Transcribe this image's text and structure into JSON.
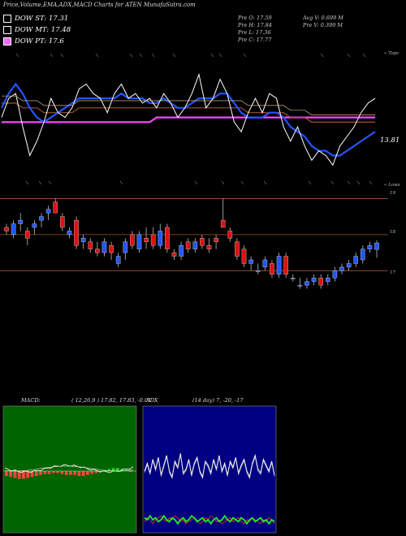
{
  "header": {
    "title": "Price,Volume,EMA,ADX,MACD Charts for ATEN  MunafaSutra.com",
    "legend": [
      {
        "label": "DOW ST: 17.31",
        "color": "#ffffff"
      },
      {
        "label": "DOW MT: 17.48",
        "color": "#ffffff"
      },
      {
        "label": "DOW PT: 17.6",
        "color": "#ff66ff"
      }
    ],
    "stats_left": [
      "Pre   O: 17.59",
      "Pre   H: 17.84",
      "Pre   L: 17.36",
      "Pre   C: 17.77"
    ],
    "stats_right": [
      "Avg V: 0.699 M",
      "Pre   V: 0.399 M"
    ]
  },
  "ema_panel": {
    "top_right_label": "« Tops",
    "bottom_right_label": "« Lows",
    "price_label": "13.81"
  },
  "candle_panel": {
    "levels": [
      {
        "value": 19,
        "label": "19"
      },
      {
        "value": 18,
        "label": "18"
      },
      {
        "value": 17,
        "label": "17"
      }
    ]
  },
  "macd_panel": {
    "title": "MACD:",
    "params": "( 12,26,9 ) 17.82,  17.83,  -0.01"
  },
  "adx_panel": {
    "title": "ADX",
    "params": "(14  day) 7,  -20,  -17"
  },
  "colors": {
    "up": "#2255ff",
    "down": "#dd1111",
    "ema_long": "#ff44ff",
    "ema_mid": "#a0522d",
    "price": "#ffffff",
    "level_line": "#a0522d",
    "macd_bg": "#006400",
    "adx_bg": "#000080"
  },
  "chart_data": [
    {
      "type": "candlestick",
      "name": "ATEN daily candles",
      "ohlc": [
        [
          18.2,
          18.3,
          18.0,
          18.1
        ],
        [
          18.0,
          18.4,
          17.9,
          18.3
        ],
        [
          18.3,
          18.6,
          18.1,
          18.4
        ],
        [
          18.1,
          18.2,
          17.7,
          17.9
        ],
        [
          18.2,
          18.4,
          18.0,
          18.3
        ],
        [
          18.4,
          18.6,
          18.2,
          18.5
        ],
        [
          18.6,
          18.8,
          18.4,
          18.7
        ],
        [
          18.9,
          19.0,
          18.6,
          18.6
        ],
        [
          18.5,
          18.6,
          18.1,
          18.2
        ],
        [
          18.0,
          18.2,
          17.9,
          18.1
        ],
        [
          18.4,
          18.5,
          17.6,
          17.7
        ],
        [
          17.8,
          18.0,
          17.6,
          17.9
        ],
        [
          17.8,
          17.9,
          17.5,
          17.6
        ],
        [
          17.6,
          17.8,
          17.4,
          17.5
        ],
        [
          17.5,
          17.9,
          17.4,
          17.8
        ],
        [
          17.7,
          17.8,
          17.3,
          17.5
        ],
        [
          17.2,
          17.5,
          17.1,
          17.4
        ],
        [
          17.5,
          17.9,
          17.3,
          17.8
        ],
        [
          18.0,
          18.1,
          17.6,
          17.7
        ],
        [
          17.6,
          18.1,
          17.5,
          18.0
        ],
        [
          17.9,
          18.2,
          17.6,
          17.8
        ],
        [
          18.0,
          18.2,
          17.6,
          17.7
        ],
        [
          17.7,
          18.3,
          17.6,
          18.1
        ],
        [
          18.2,
          18.3,
          17.5,
          17.6
        ],
        [
          17.5,
          17.6,
          17.3,
          17.4
        ],
        [
          17.4,
          17.8,
          17.3,
          17.7
        ],
        [
          17.8,
          17.9,
          17.5,
          17.6
        ],
        [
          17.6,
          17.9,
          17.5,
          17.8
        ],
        [
          17.9,
          18.0,
          17.6,
          17.7
        ],
        [
          17.7,
          17.9,
          17.5,
          17.6
        ],
        [
          17.9,
          18.0,
          17.6,
          17.8
        ],
        [
          18.4,
          19.0,
          18.2,
          18.2
        ],
        [
          18.1,
          18.2,
          17.8,
          17.9
        ],
        [
          17.8,
          17.9,
          17.3,
          17.4
        ],
        [
          17.6,
          17.7,
          17.1,
          17.2
        ],
        [
          17.2,
          17.4,
          17.0,
          17.3
        ],
        [
          17.0,
          17.2,
          16.9,
          17.0
        ],
        [
          17.1,
          17.4,
          17.0,
          17.3
        ],
        [
          17.2,
          17.3,
          16.8,
          16.9
        ],
        [
          16.9,
          17.5,
          16.8,
          17.4
        ],
        [
          17.4,
          17.5,
          16.8,
          16.9
        ],
        [
          16.8,
          16.9,
          16.7,
          16.8
        ],
        [
          16.6,
          16.8,
          16.5,
          16.6
        ],
        [
          16.6,
          16.8,
          16.5,
          16.7
        ],
        [
          16.7,
          16.9,
          16.6,
          16.8
        ],
        [
          16.8,
          16.9,
          16.5,
          16.6
        ],
        [
          16.7,
          16.9,
          16.6,
          16.8
        ],
        [
          16.8,
          17.1,
          16.7,
          17.0
        ],
        [
          17.0,
          17.2,
          16.9,
          17.1
        ],
        [
          17.1,
          17.3,
          17.0,
          17.2
        ],
        [
          17.2,
          17.5,
          17.1,
          17.4
        ],
        [
          17.3,
          17.7,
          17.2,
          17.6
        ],
        [
          17.6,
          17.8,
          17.5,
          17.7
        ],
        [
          17.59,
          17.84,
          17.36,
          17.77
        ]
      ],
      "levels": [
        19,
        18,
        17
      ]
    },
    {
      "type": "line",
      "name": "Price and EMAs",
      "series": [
        {
          "name": "",
          "values": [
            17.4,
            17.8,
            17.9,
            17.2,
            16.6,
            16.9,
            17.3,
            17.8,
            17.5,
            17.4,
            17.6,
            18.0,
            18.1,
            17.9,
            17.8,
            17.5,
            17.9,
            18.1,
            17.8,
            17.9,
            17.7,
            17.8,
            17.6,
            17.9,
            17.7,
            17.4,
            17.6,
            17.9,
            18.3,
            17.6,
            17.8,
            18.2,
            17.9,
            17.3,
            17.1,
            17.5,
            17.8,
            17.5,
            17.9,
            17.8,
            17.2,
            16.9,
            17.2,
            16.8,
            16.5,
            16.7,
            16.6,
            16.4,
            16.8,
            17.0,
            17.2,
            17.5,
            17.7,
            17.8
          ]
        },
        {
          "name": "",
          "values": [
            17.6,
            17.9,
            18.1,
            17.9,
            17.6,
            17.4,
            17.3,
            17.4,
            17.5,
            17.6,
            17.7,
            17.8,
            17.8,
            17.8,
            17.8,
            17.8,
            17.8,
            17.9,
            17.8,
            17.8,
            17.8,
            17.7,
            17.7,
            17.8,
            17.7,
            17.6,
            17.6,
            17.7,
            17.8,
            17.8,
            17.8,
            17.9,
            17.9,
            17.7,
            17.5,
            17.4,
            17.4,
            17.4,
            17.5,
            17.5,
            17.4,
            17.2,
            17.1,
            17.0,
            16.8,
            16.7,
            16.7,
            16.6,
            16.6,
            16.7,
            16.8,
            16.9,
            17.0,
            17.1
          ]
        },
        {
          "name": "",
          "values": [
            17.7,
            17.7,
            17.7,
            17.6,
            17.6,
            17.6,
            17.5,
            17.5,
            17.5,
            17.5,
            17.5,
            17.6,
            17.6,
            17.6,
            17.6,
            17.6,
            17.6,
            17.6,
            17.6,
            17.6,
            17.6,
            17.6,
            17.6,
            17.6,
            17.6,
            17.6,
            17.6,
            17.6,
            17.6,
            17.6,
            17.6,
            17.6,
            17.6,
            17.6,
            17.6,
            17.5,
            17.5,
            17.5,
            17.5,
            17.5,
            17.5,
            17.4,
            17.4,
            17.4,
            17.3,
            17.3,
            17.3,
            17.3,
            17.3,
            17.3,
            17.3,
            17.3,
            17.3,
            17.3
          ]
        },
        {
          "name": "",
          "values": [
            17.3,
            17.3,
            17.3,
            17.3,
            17.3,
            17.3,
            17.3,
            17.3,
            17.3,
            17.3,
            17.3,
            17.3,
            17.3,
            17.3,
            17.3,
            17.3,
            17.3,
            17.3,
            17.3,
            17.3,
            17.3,
            17.3,
            17.4,
            17.4,
            17.4,
            17.4,
            17.4,
            17.4,
            17.4,
            17.4,
            17.4,
            17.4,
            17.4,
            17.4,
            17.4,
            17.4,
            17.4,
            17.4,
            17.4,
            17.4,
            17.4,
            17.4,
            17.4,
            17.4,
            17.4,
            17.4,
            17.4,
            17.4,
            17.4,
            17.4,
            17.4,
            17.4,
            17.4,
            17.4
          ]
        }
      ]
    },
    {
      "type": "bar",
      "name": "MACD histogram",
      "values": [
        -0.05,
        -0.06,
        -0.07,
        -0.08,
        -0.08,
        -0.07,
        -0.06,
        -0.05,
        -0.04,
        -0.03,
        -0.03,
        -0.02,
        -0.02,
        -0.03,
        -0.04,
        -0.04,
        -0.04,
        -0.05,
        -0.05,
        -0.04,
        -0.03,
        -0.02,
        -0.01,
        0.01,
        0.02,
        0.03,
        0.03,
        0.02,
        0.01,
        -0.01
      ]
    },
    {
      "type": "line",
      "name": "ADX",
      "series": [
        {
          "name": "",
          "values": [
            30,
            34,
            29,
            36,
            31,
            37,
            28,
            33,
            38,
            30,
            27,
            35,
            32,
            39,
            29,
            31,
            36,
            28,
            34,
            37,
            30,
            27,
            35,
            33,
            29,
            36,
            31,
            38,
            30,
            34,
            28,
            35,
            32,
            37,
            29,
            33,
            36,
            30,
            27,
            34,
            38,
            31,
            29,
            36,
            33,
            30,
            35,
            28
          ]
        },
        {
          "name": "",
          "values": [
            6,
            5,
            7,
            5,
            6,
            4,
            5,
            7,
            5,
            4,
            6,
            5,
            3,
            5,
            6,
            4,
            5,
            7,
            6,
            4,
            5,
            6,
            4,
            5,
            3,
            5,
            6,
            4,
            5,
            7,
            5,
            4,
            6,
            5,
            4,
            6,
            5,
            3,
            5,
            6,
            4,
            5,
            6,
            4,
            5,
            3,
            5,
            4
          ]
        },
        {
          "name": "",
          "values": [
            4,
            6,
            5,
            3,
            5,
            6,
            7,
            5,
            4,
            6,
            5,
            7,
            6,
            4,
            5,
            3,
            4,
            5,
            6,
            5,
            3,
            4,
            6,
            5,
            7,
            6,
            4,
            5,
            3,
            4,
            5,
            6,
            4,
            5,
            6,
            4,
            3,
            5,
            4,
            6,
            5,
            4,
            3,
            5,
            4,
            6,
            5,
            3
          ]
        }
      ]
    }
  ]
}
